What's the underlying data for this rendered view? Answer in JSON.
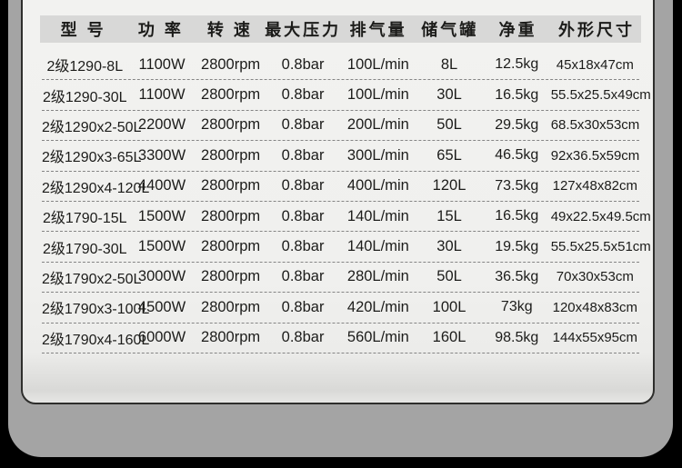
{
  "colors": {
    "outer_frame": "#000000",
    "page_background": "#a4a4a4",
    "card_background": "#f1f1ef",
    "card_border": "#2e2e2c",
    "header_band": "#d8d8d7",
    "row_divider": "#858585",
    "text": "#1c1c1a"
  },
  "table": {
    "headers": [
      {
        "key": "model",
        "label": "型 号"
      },
      {
        "key": "power",
        "label": "功 率"
      },
      {
        "key": "speed",
        "label": "转 速"
      },
      {
        "key": "max-pressure",
        "label": "最大压力"
      },
      {
        "key": "displacement",
        "label": "排气量"
      },
      {
        "key": "tank",
        "label": "储气罐"
      },
      {
        "key": "weight",
        "label": "净重"
      },
      {
        "key": "dimensions",
        "label": "外形尺寸"
      }
    ],
    "rows": [
      [
        "2级1290-8L",
        "1100W",
        "2800rpm",
        "0.8bar",
        "100L/min",
        "8L",
        "12.5kg",
        "45x18x47cm"
      ],
      [
        "2级1290-30L",
        "1100W",
        "2800rpm",
        "0.8bar",
        "100L/min",
        "30L",
        "16.5kg",
        "55.5x25.5x49cm"
      ],
      [
        "2级1290x2-50L",
        "2200W",
        "2800rpm",
        "0.8bar",
        "200L/min",
        "50L",
        "29.5kg",
        "68.5x30x53cm"
      ],
      [
        "2级1290x3-65L",
        "3300W",
        "2800rpm",
        "0.8bar",
        "300L/min",
        "65L",
        "46.5kg",
        "92x36.5x59cm"
      ],
      [
        "2级1290x4-120L",
        "4400W",
        "2800rpm",
        "0.8bar",
        "400L/min",
        "120L",
        "73.5kg",
        "127x48x82cm"
      ],
      [
        "2级1790-15L",
        "1500W",
        "2800rpm",
        "0.8bar",
        "140L/min",
        "15L",
        "16.5kg",
        "49x22.5x49.5cm"
      ],
      [
        "2级1790-30L",
        "1500W",
        "2800rpm",
        "0.8bar",
        "140L/min",
        "30L",
        "19.5kg",
        "55.5x25.5x51cm"
      ],
      [
        "2级1790x2-50L",
        "3000W",
        "2800rpm",
        "0.8bar",
        "280L/min",
        "50L",
        "36.5kg",
        "70x30x53cm"
      ],
      [
        "2级1790x3-100L",
        "4500W",
        "2800rpm",
        "0.8bar",
        "420L/min",
        "100L",
        "73kg",
        "120x48x83cm"
      ],
      [
        "2级1790x4-160L",
        "6000W",
        "2800rpm",
        "0.8bar",
        "560L/min",
        "160L",
        "98.5kg",
        "144x55x95cm"
      ]
    ]
  }
}
